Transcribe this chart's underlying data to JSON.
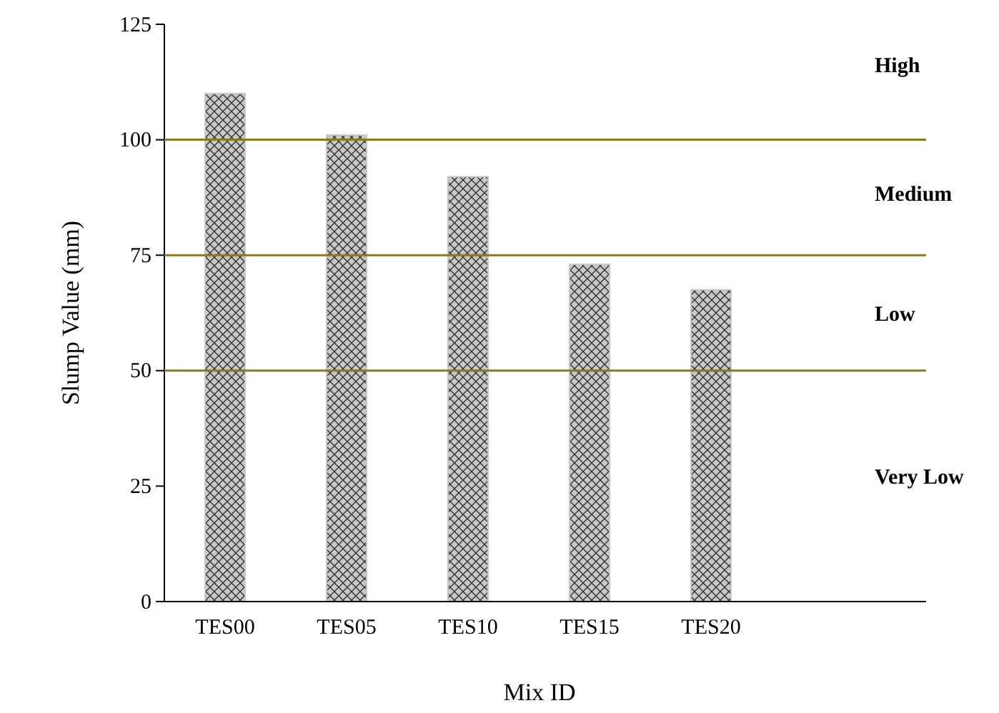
{
  "chart_data": {
    "type": "bar",
    "xlabel": "Mix ID",
    "ylabel": "Slump Value (mm)",
    "categories": [
      "TES00",
      "TES05",
      "TES10",
      "TES15",
      "TES20"
    ],
    "values": [
      110,
      101,
      92,
      73,
      67.5
    ],
    "color": "#c8c8c8",
    "ylim": [
      0,
      125
    ],
    "yticks": [
      0,
      25,
      50,
      75,
      100,
      125
    ],
    "ref_lines": [
      {
        "axis": "y",
        "value": 100,
        "color": "#8b7a1f"
      },
      {
        "axis": "y",
        "value": 75,
        "color": "#8b7a1f"
      },
      {
        "axis": "y",
        "value": 50,
        "color": "#8b7a1f"
      }
    ],
    "annotations": [
      "High",
      "Medium",
      "Low",
      "Very Low"
    ],
    "grid": false
  }
}
